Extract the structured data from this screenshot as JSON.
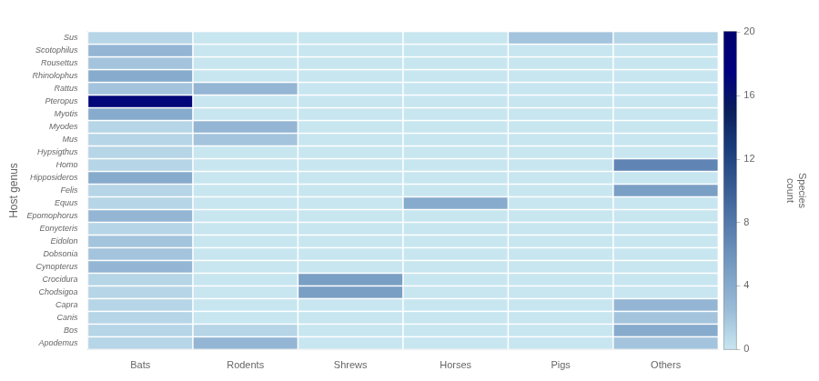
{
  "chart_data": {
    "type": "heatmap",
    "categories": [
      "Bats",
      "Rodents",
      "Shrews",
      "Horses",
      "Pigs",
      "Others"
    ],
    "y_categories": [
      "Sus",
      "Scotophilus",
      "Rousettus",
      "Rhinolophus",
      "Rattus",
      "Pteropus",
      "Myotis",
      "Myodes",
      "Mus",
      "Hypsigthus",
      "Homo",
      "Hipposideros",
      "Felis",
      "Equus",
      "Epomophorus",
      "Eonycteris",
      "Eidolon",
      "Dobsonia",
      "Cynopterus",
      "Crocidura",
      "Chodsigoa",
      "Capra",
      "Canis",
      "Bos",
      "Apodemus"
    ],
    "values": [
      [
        1,
        0,
        0,
        0,
        2,
        1
      ],
      [
        3,
        0,
        0,
        0,
        0,
        0
      ],
      [
        2,
        0,
        0,
        0,
        0,
        0
      ],
      [
        4,
        0,
        0,
        0,
        0,
        0
      ],
      [
        2,
        3,
        0,
        0,
        0,
        0
      ],
      [
        17,
        0,
        0,
        0,
        0,
        0
      ],
      [
        4,
        0,
        0,
        0,
        0,
        0
      ],
      [
        1,
        3,
        0,
        0,
        0,
        0
      ],
      [
        1,
        2,
        0,
        0,
        0,
        0
      ],
      [
        1,
        0,
        0,
        0,
        0,
        0
      ],
      [
        1,
        0,
        0,
        0,
        0,
        7
      ],
      [
        4,
        0,
        0,
        0,
        0,
        0
      ],
      [
        1,
        0,
        0,
        0,
        0,
        5
      ],
      [
        1,
        0,
        0,
        4,
        0,
        0
      ],
      [
        3,
        0,
        0,
        0,
        0,
        0
      ],
      [
        1,
        0,
        0,
        0,
        0,
        0
      ],
      [
        2,
        0,
        0,
        0,
        0,
        0
      ],
      [
        2,
        0,
        0,
        0,
        0,
        0
      ],
      [
        3,
        0,
        0,
        0,
        0,
        0
      ],
      [
        1,
        0,
        5,
        0,
        0,
        0
      ],
      [
        1,
        0,
        5,
        0,
        0,
        0
      ],
      [
        1,
        0,
        0,
        0,
        0,
        3
      ],
      [
        1,
        0,
        0,
        0,
        0,
        2
      ],
      [
        1,
        1,
        0,
        0,
        0,
        4
      ],
      [
        1,
        3,
        0,
        0,
        0,
        2
      ]
    ],
    "ylabel": "Host genus",
    "colorbar_range": [
      0,
      20
    ],
    "colorbar_ticks": [
      0,
      4,
      8,
      12,
      16,
      20
    ],
    "colorbar_label": "Species\ncount",
    "grid": false
  }
}
